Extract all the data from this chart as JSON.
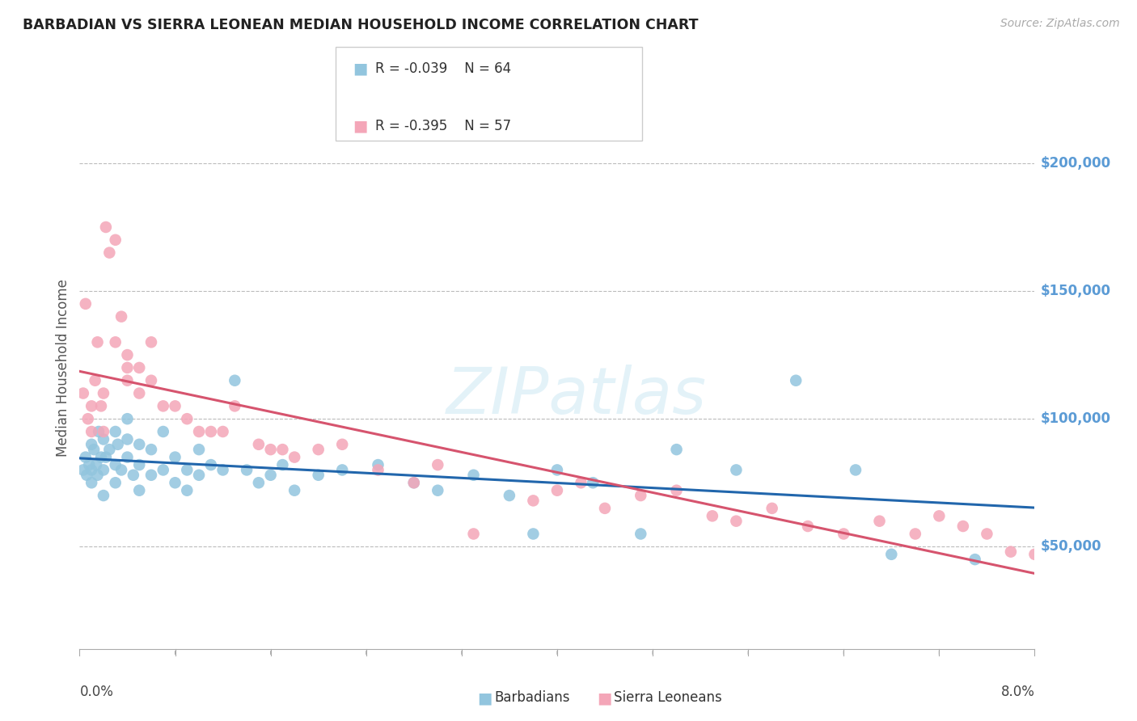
{
  "title": "BARBADIAN VS SIERRA LEONEAN MEDIAN HOUSEHOLD INCOME CORRELATION CHART",
  "source": "Source: ZipAtlas.com",
  "ylabel": "Median Household Income",
  "legend_label1": "Barbadians",
  "legend_label2": "Sierra Leoneans",
  "legend_r1": "R = -0.039",
  "legend_n1": "N = 64",
  "legend_r2": "R = -0.395",
  "legend_n2": "N = 57",
  "ytick_labels": [
    "$50,000",
    "$100,000",
    "$150,000",
    "$200,000"
  ],
  "ytick_values": [
    50000,
    100000,
    150000,
    200000
  ],
  "color_blue": "#92c5de",
  "color_pink": "#f4a6b8",
  "color_blue_line": "#2166ac",
  "color_pink_line": "#d6546e",
  "color_ytick": "#5b9bd5",
  "color_grid": "#bbbbbb",
  "watermark": "ZIPatlas",
  "xmin": 0.0,
  "xmax": 0.08,
  "ymin": 10000,
  "ymax": 230000,
  "barbadians_x": [
    0.0003,
    0.0005,
    0.0006,
    0.0008,
    0.001,
    0.001,
    0.001,
    0.0012,
    0.0014,
    0.0015,
    0.0016,
    0.0018,
    0.002,
    0.002,
    0.002,
    0.0022,
    0.0025,
    0.003,
    0.003,
    0.003,
    0.0032,
    0.0035,
    0.004,
    0.004,
    0.004,
    0.0045,
    0.005,
    0.005,
    0.005,
    0.006,
    0.006,
    0.007,
    0.007,
    0.008,
    0.008,
    0.009,
    0.009,
    0.01,
    0.01,
    0.011,
    0.012,
    0.013,
    0.014,
    0.015,
    0.016,
    0.017,
    0.018,
    0.02,
    0.022,
    0.025,
    0.028,
    0.03,
    0.033,
    0.036,
    0.038,
    0.04,
    0.043,
    0.047,
    0.05,
    0.055,
    0.06,
    0.065,
    0.068,
    0.075
  ],
  "barbadians_y": [
    80000,
    85000,
    78000,
    82000,
    90000,
    80000,
    75000,
    88000,
    82000,
    78000,
    95000,
    85000,
    92000,
    80000,
    70000,
    85000,
    88000,
    95000,
    82000,
    75000,
    90000,
    80000,
    100000,
    92000,
    85000,
    78000,
    90000,
    82000,
    72000,
    88000,
    78000,
    95000,
    80000,
    85000,
    75000,
    80000,
    72000,
    88000,
    78000,
    82000,
    80000,
    115000,
    80000,
    75000,
    78000,
    82000,
    72000,
    78000,
    80000,
    82000,
    75000,
    72000,
    78000,
    70000,
    55000,
    80000,
    75000,
    55000,
    88000,
    80000,
    115000,
    80000,
    47000,
    45000
  ],
  "sierraleoneans_x": [
    0.0003,
    0.0005,
    0.0007,
    0.001,
    0.001,
    0.0013,
    0.0015,
    0.0018,
    0.002,
    0.002,
    0.0022,
    0.0025,
    0.003,
    0.003,
    0.0035,
    0.004,
    0.004,
    0.004,
    0.005,
    0.005,
    0.006,
    0.006,
    0.007,
    0.008,
    0.009,
    0.01,
    0.011,
    0.012,
    0.013,
    0.015,
    0.016,
    0.017,
    0.018,
    0.02,
    0.022,
    0.025,
    0.028,
    0.03,
    0.033,
    0.038,
    0.04,
    0.042,
    0.044,
    0.047,
    0.05,
    0.053,
    0.055,
    0.058,
    0.061,
    0.064,
    0.067,
    0.07,
    0.072,
    0.074,
    0.076,
    0.078,
    0.08
  ],
  "sierraleoneans_y": [
    110000,
    145000,
    100000,
    105000,
    95000,
    115000,
    130000,
    105000,
    110000,
    95000,
    175000,
    165000,
    170000,
    130000,
    140000,
    125000,
    120000,
    115000,
    120000,
    110000,
    130000,
    115000,
    105000,
    105000,
    100000,
    95000,
    95000,
    95000,
    105000,
    90000,
    88000,
    88000,
    85000,
    88000,
    90000,
    80000,
    75000,
    82000,
    55000,
    68000,
    72000,
    75000,
    65000,
    70000,
    72000,
    62000,
    60000,
    65000,
    58000,
    55000,
    60000,
    55000,
    62000,
    58000,
    55000,
    48000,
    47000
  ]
}
